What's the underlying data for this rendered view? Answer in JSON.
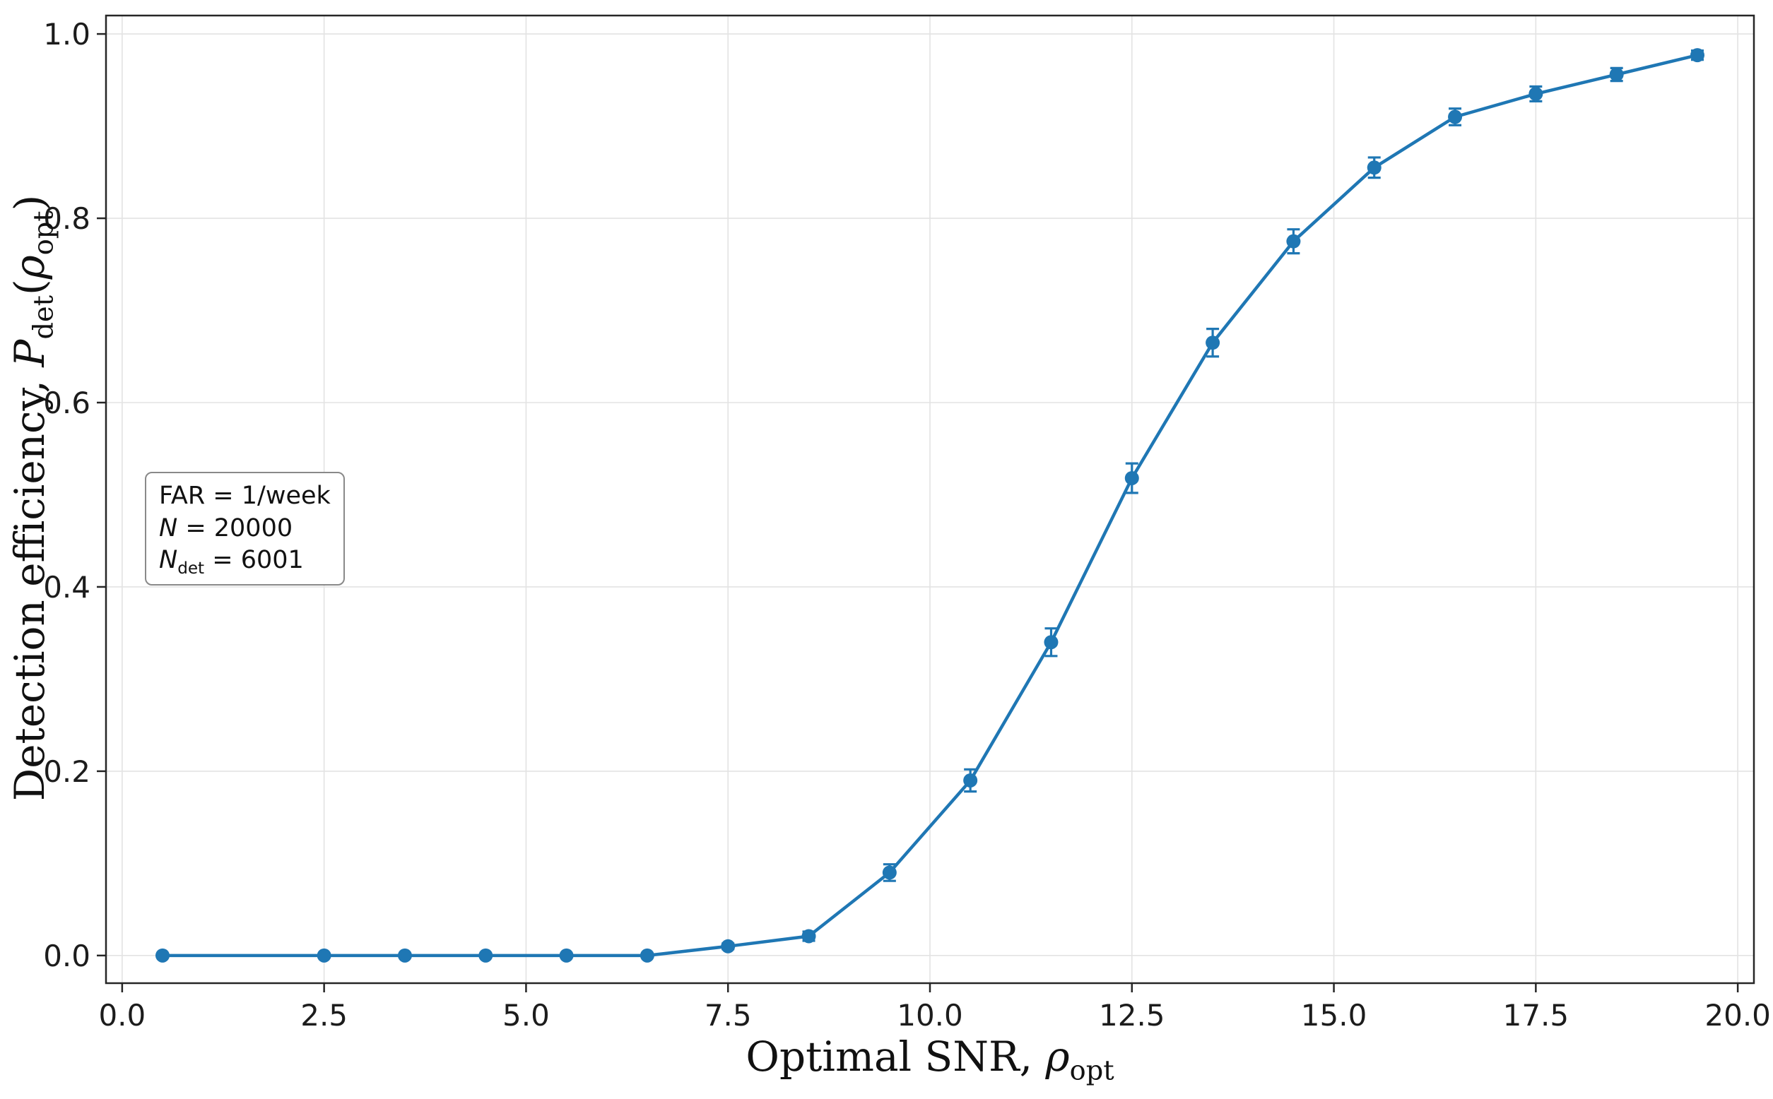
{
  "chart_data": {
    "type": "line",
    "title": "",
    "xlabel": {
      "prefix": "Optimal SNR, ",
      "rho": "ρ",
      "rho_sub": "opt"
    },
    "ylabel": {
      "prefix": "Detection efficiency, ",
      "sym": "P",
      "sym_sub": "det",
      "open": "(",
      "rho": "ρ",
      "rho_sub": "opt",
      "close": ")"
    },
    "x": [
      0.5,
      2.5,
      3.5,
      4.5,
      5.5,
      6.5,
      7.5,
      8.5,
      9.5,
      10.5,
      11.5,
      12.5,
      13.5,
      14.5,
      15.5,
      16.5,
      17.5,
      18.5,
      19.5
    ],
    "y": [
      0.0,
      0.0,
      0.0,
      0.0,
      0.0,
      0.0,
      0.01,
      0.021,
      0.09,
      0.19,
      0.34,
      0.518,
      0.665,
      0.775,
      0.855,
      0.91,
      0.935,
      0.956,
      0.977
    ],
    "yerr": [
      0.001,
      0.001,
      0.001,
      0.001,
      0.001,
      0.001,
      0.003,
      0.005,
      0.009,
      0.012,
      0.015,
      0.016,
      0.015,
      0.013,
      0.011,
      0.009,
      0.008,
      0.007,
      0.005
    ],
    "xlim": [
      -0.2,
      20.2
    ],
    "ylim": [
      -0.03,
      1.02
    ],
    "xticks": [
      0.0,
      2.5,
      5.0,
      7.5,
      10.0,
      12.5,
      15.0,
      17.5,
      20.0
    ],
    "yticks": [
      0.0,
      0.2,
      0.4,
      0.6,
      0.8,
      1.0
    ],
    "xtick_labels": [
      "0.0",
      "2.5",
      "5.0",
      "7.5",
      "10.0",
      "12.5",
      "15.0",
      "17.5",
      "20.0"
    ],
    "ytick_labels": [
      "0.0",
      "0.2",
      "0.4",
      "0.6",
      "0.8",
      "1.0"
    ],
    "line_color": "#1f77b4",
    "grid": true,
    "legend": "none",
    "annotation": {
      "lines": [
        {
          "pre": "FAR = 1/week",
          "sym": "",
          "sub": "",
          "post": ""
        },
        {
          "pre": "",
          "sym": "N",
          "sub": "",
          "post": " = 20000"
        },
        {
          "pre": "",
          "sym": "N",
          "sub": "det",
          "post": " = 6001"
        }
      ]
    }
  }
}
